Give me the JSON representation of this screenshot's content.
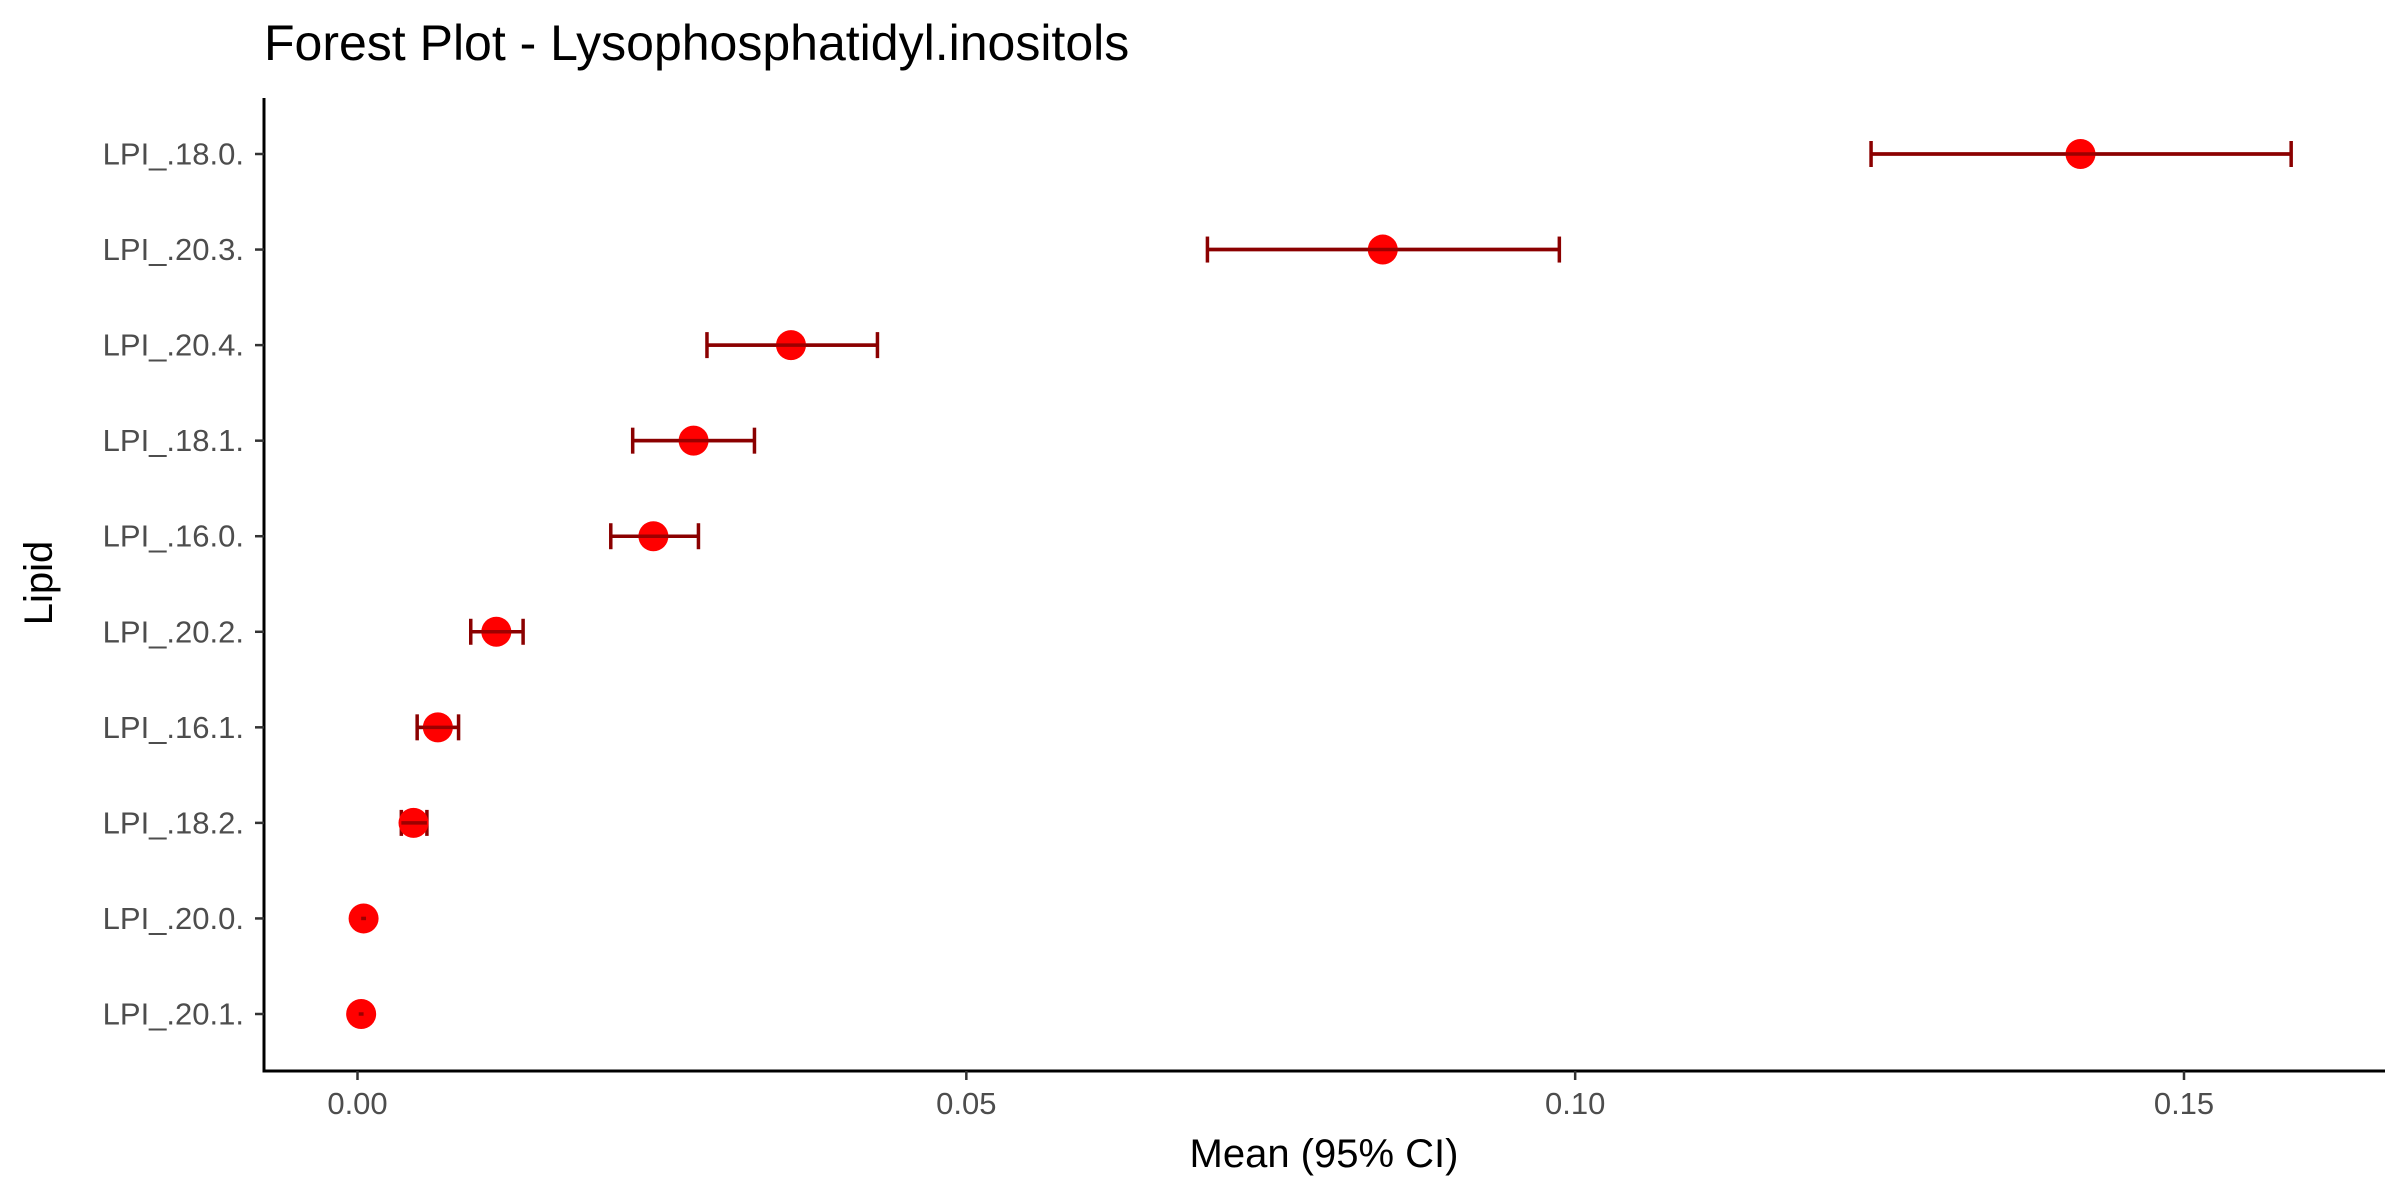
{
  "chart_data": {
    "type": "forest",
    "title": "Forest Plot - Lysophosphatidyl.inositols",
    "xlabel": "Mean (95% CI)",
    "ylabel": "Lipid",
    "xlim": [
      -0.0075,
      0.1665
    ],
    "x_ticks": [
      0.0,
      0.05,
      0.1,
      0.15
    ],
    "x_tick_labels": [
      "0.00",
      "0.05",
      "0.10",
      "0.15"
    ],
    "grid": false,
    "legend": "none",
    "point_color": "#ff0000",
    "errorbar_color": "#8b0000",
    "categories": [
      "LPI_.18.0.",
      "LPI_.20.3.",
      "LPI_.20.4.",
      "LPI_.18.1.",
      "LPI_.16.0.",
      "LPI_.20.2.",
      "LPI_.16.1.",
      "LPI_.18.2.",
      "LPI_.20.0.",
      "LPI_.20.1."
    ],
    "mean": [
      0.1415,
      0.0842,
      0.0356,
      0.0276,
      0.0243,
      0.0114,
      0.0066,
      0.0046,
      0.0005,
      0.0003
    ],
    "lower": [
      0.1243,
      0.0698,
      0.0287,
      0.0226,
      0.0208,
      0.0093,
      0.0049,
      0.0036,
      0.0003,
      0.0001
    ],
    "upper": [
      0.1588,
      0.0987,
      0.0427,
      0.0326,
      0.028,
      0.0136,
      0.0083,
      0.0057,
      0.0007,
      0.0005
    ]
  }
}
